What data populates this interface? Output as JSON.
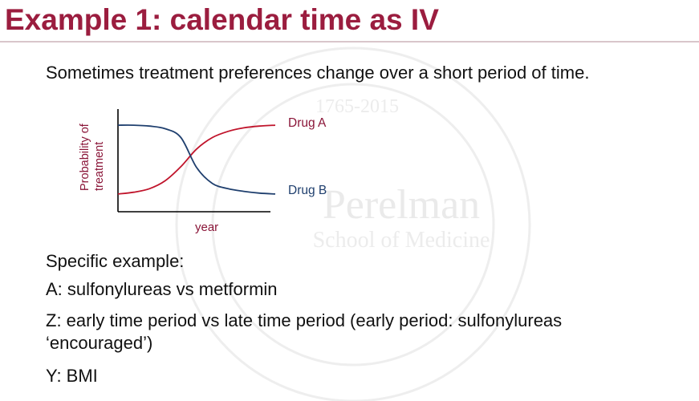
{
  "slide": {
    "title": "Example 1: calendar time as IV",
    "intro": "Sometimes treatment preferences change over a short period of time.",
    "body_lines": [
      "Specific example:",
      "A: sulfonylureas vs metformin",
      "Z: early time period vs late time period (early period: sulfonylureas",
      "‘encouraged’)",
      "Y: BMI"
    ],
    "watermark_text": [
      "1765-2015",
      "Perelman",
      "School of Medicine"
    ]
  },
  "colors": {
    "title": "#9b1d3f",
    "drug_a": "#c0142b",
    "drug_b": "#1f3f6e",
    "axis_label": "#8a1538"
  },
  "chart_data": {
    "type": "line",
    "xlabel": "year",
    "ylabel_lines": [
      "Probability of",
      "treatment"
    ],
    "x": [
      0,
      1,
      2,
      3,
      4,
      5,
      6,
      7,
      8,
      9,
      10
    ],
    "series": [
      {
        "name": "Drug A",
        "color": "#c0142b",
        "values": [
          0.11,
          0.13,
          0.17,
          0.26,
          0.42,
          0.62,
          0.75,
          0.82,
          0.86,
          0.88,
          0.89
        ]
      },
      {
        "name": "Drug B",
        "color": "#1f3f6e",
        "values": [
          0.89,
          0.89,
          0.88,
          0.85,
          0.75,
          0.41,
          0.23,
          0.17,
          0.14,
          0.12,
          0.11
        ]
      }
    ]
  }
}
